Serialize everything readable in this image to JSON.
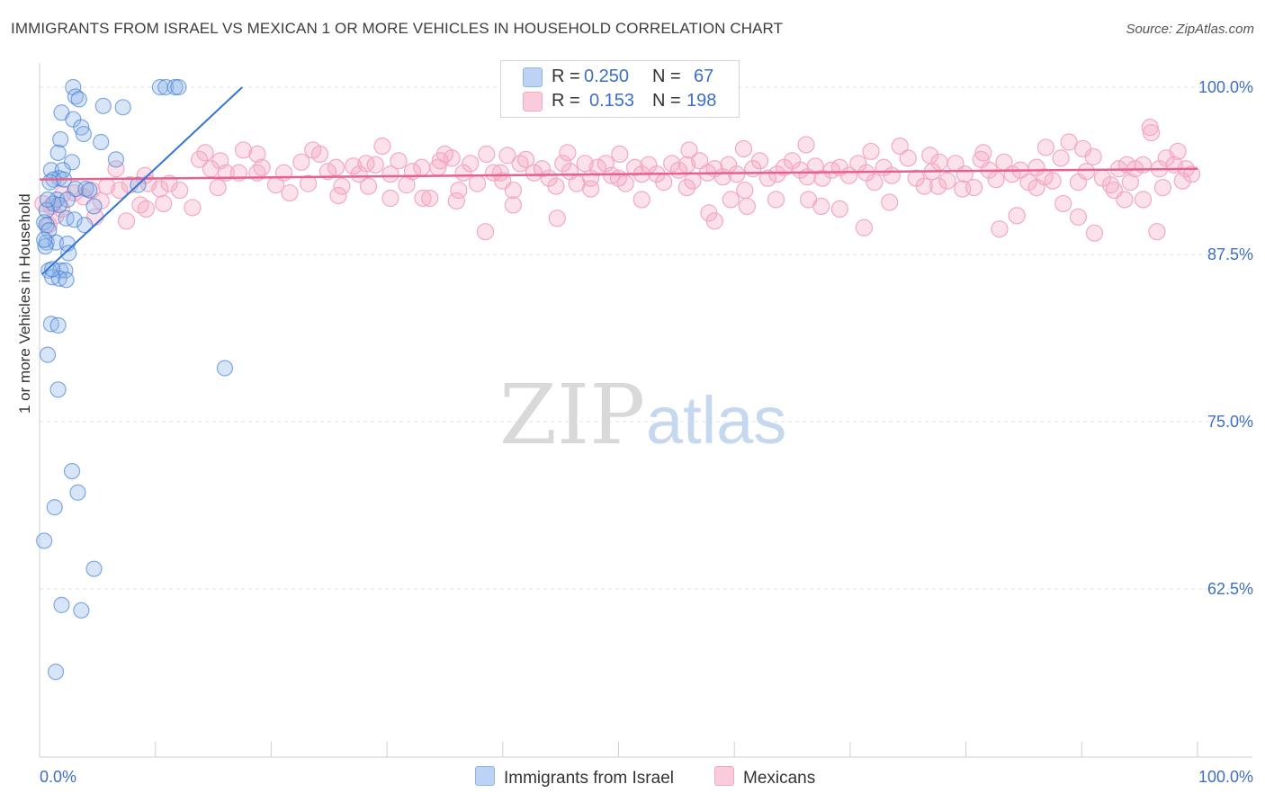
{
  "title": "IMMIGRANTS FROM ISRAEL VS MEXICAN 1 OR MORE VEHICLES IN HOUSEHOLD CORRELATION CHART",
  "source": "Source: ZipAtlas.com",
  "watermark": {
    "zip": "ZIP",
    "atlas": "atlas"
  },
  "legend": {
    "r_label": "R =",
    "n_label": "N =",
    "series1": {
      "r": "0.250",
      "n": "67"
    },
    "series2": {
      "r": "0.153",
      "n": "198"
    }
  },
  "chart_data": {
    "type": "scatter",
    "title": "IMMIGRANTS FROM ISRAEL VS MEXICAN 1 OR MORE VEHICLES IN HOUSEHOLD CORRELATION CHART",
    "xlabel": "",
    "ylabel": "1 or more Vehicles in Household",
    "xlim": [
      0,
      100
    ],
    "ylim": [
      50,
      102
    ],
    "x_tick_labels": [
      "0.0%",
      "100.0%"
    ],
    "y_ticks": [
      62.5,
      75.0,
      87.5,
      100.0
    ],
    "y_tick_labels": [
      "62.5%",
      "75.0%",
      "87.5%",
      "100.0%"
    ],
    "grid": true,
    "legend_position": "top-center",
    "series": [
      {
        "name": "Immigrants from Israel",
        "color": "#8fb4e8",
        "line_color": "#3374d4",
        "r": 0.25,
        "n": 67,
        "trend": {
          "x": [
            0.2,
            17.5
          ],
          "y": [
            86.0,
            100.0
          ]
        },
        "points": [
          [
            2.9,
            100
          ],
          [
            3.1,
            99.3
          ],
          [
            3.4,
            99.1
          ],
          [
            10.4,
            100
          ],
          [
            10.9,
            100
          ],
          [
            11.7,
            100
          ],
          [
            12.0,
            100
          ],
          [
            5.5,
            98.6
          ],
          [
            7.2,
            98.5
          ],
          [
            1.9,
            98.1
          ],
          [
            2.9,
            97.6
          ],
          [
            3.6,
            97.0
          ],
          [
            3.8,
            96.5
          ],
          [
            1.8,
            96.1
          ],
          [
            5.3,
            95.9
          ],
          [
            1.6,
            95.1
          ],
          [
            6.6,
            94.6
          ],
          [
            2.8,
            94.4
          ],
          [
            1.0,
            93.8
          ],
          [
            2.0,
            93.8
          ],
          [
            1.7,
            93.2
          ],
          [
            1.2,
            93.1
          ],
          [
            2.1,
            93.1
          ],
          [
            0.9,
            92.9
          ],
          [
            3.1,
            92.4
          ],
          [
            4.0,
            92.4
          ],
          [
            4.3,
            92.3
          ],
          [
            1.5,
            91.6
          ],
          [
            2.4,
            91.6
          ],
          [
            1.2,
            91.3
          ],
          [
            1.7,
            91.2
          ],
          [
            4.7,
            91.1
          ],
          [
            0.6,
            90.8
          ],
          [
            2.3,
            90.2
          ],
          [
            3.0,
            90.1
          ],
          [
            0.4,
            89.9
          ],
          [
            0.6,
            89.7
          ],
          [
            3.9,
            89.7
          ],
          [
            0.8,
            89.3
          ],
          [
            0.6,
            88.4
          ],
          [
            1.4,
            88.4
          ],
          [
            2.4,
            88.3
          ],
          [
            0.5,
            88.1
          ],
          [
            2.5,
            87.6
          ],
          [
            0.8,
            86.3
          ],
          [
            1.8,
            86.3
          ],
          [
            2.2,
            86.3
          ],
          [
            1.1,
            85.8
          ],
          [
            1.7,
            85.7
          ],
          [
            2.3,
            85.6
          ],
          [
            8.5,
            92.7
          ],
          [
            1.0,
            82.3
          ],
          [
            1.6,
            82.2
          ],
          [
            0.7,
            80.0
          ],
          [
            1.6,
            77.4
          ],
          [
            16.0,
            79.0
          ],
          [
            2.8,
            71.3
          ],
          [
            3.3,
            69.7
          ],
          [
            1.3,
            68.6
          ],
          [
            0.4,
            66.1
          ],
          [
            4.7,
            64.0
          ],
          [
            1.9,
            61.3
          ],
          [
            3.6,
            60.9
          ],
          [
            1.4,
            56.3
          ],
          [
            0.7,
            91.6
          ],
          [
            0.4,
            88.6
          ],
          [
            1.1,
            86.4
          ]
        ]
      },
      {
        "name": "Mexicans",
        "color": "#f4a8c4",
        "line_color": "#e8608c",
        "r": 0.153,
        "n": 198,
        "trend": {
          "x": [
            0,
            100
          ],
          "y": [
            93.1,
            93.9
          ]
        },
        "points": [
          [
            0.3,
            91.3
          ],
          [
            1.4,
            90.4
          ],
          [
            0.8,
            89.7
          ],
          [
            1.0,
            91.1
          ],
          [
            2.0,
            92.0
          ],
          [
            3.0,
            92.1
          ],
          [
            4.5,
            92.3
          ],
          [
            5.8,
            92.6
          ],
          [
            7.8,
            92.7
          ],
          [
            9.4,
            92.8
          ],
          [
            11.2,
            92.8
          ],
          [
            3.8,
            91.8
          ],
          [
            5.3,
            91.5
          ],
          [
            6.9,
            92.3
          ],
          [
            8.7,
            91.2
          ],
          [
            10.4,
            92.4
          ],
          [
            12.1,
            92.3
          ],
          [
            4.8,
            90.3
          ],
          [
            7.5,
            90.0
          ],
          [
            9.2,
            90.9
          ],
          [
            10.7,
            91.3
          ],
          [
            13.2,
            91.0
          ],
          [
            14.3,
            95.1
          ],
          [
            14.8,
            93.9
          ],
          [
            15.6,
            94.5
          ],
          [
            16.1,
            93.6
          ],
          [
            17.2,
            93.6
          ],
          [
            17.6,
            95.3
          ],
          [
            18.8,
            93.6
          ],
          [
            19.2,
            94.0
          ],
          [
            20.4,
            92.7
          ],
          [
            21.1,
            93.6
          ],
          [
            21.6,
            92.1
          ],
          [
            22.6,
            94.4
          ],
          [
            23.2,
            92.8
          ],
          [
            24.2,
            95.0
          ],
          [
            24.9,
            93.7
          ],
          [
            25.6,
            94.0
          ],
          [
            26.1,
            92.6
          ],
          [
            27.1,
            94.1
          ],
          [
            27.6,
            93.5
          ],
          [
            28.4,
            92.6
          ],
          [
            29.0,
            94.2
          ],
          [
            29.6,
            95.6
          ],
          [
            30.3,
            93.5
          ],
          [
            31.0,
            94.5
          ],
          [
            31.7,
            92.7
          ],
          [
            32.2,
            93.7
          ],
          [
            33.0,
            94.0
          ],
          [
            33.7,
            91.7
          ],
          [
            34.4,
            94.0
          ],
          [
            35.0,
            95.0
          ],
          [
            35.6,
            94.7
          ],
          [
            36.2,
            92.3
          ],
          [
            36.6,
            93.6
          ],
          [
            37.2,
            94.3
          ],
          [
            37.8,
            92.8
          ],
          [
            38.6,
            95.0
          ],
          [
            39.2,
            93.6
          ],
          [
            39.8,
            93.6
          ],
          [
            40.4,
            94.9
          ],
          [
            40.9,
            92.3
          ],
          [
            41.5,
            94.3
          ],
          [
            42.0,
            94.6
          ],
          [
            42.7,
            93.6
          ],
          [
            43.4,
            93.9
          ],
          [
            44.0,
            93.2
          ],
          [
            44.6,
            92.6
          ],
          [
            45.2,
            94.3
          ],
          [
            45.8,
            93.7
          ],
          [
            46.4,
            92.8
          ],
          [
            47.1,
            94.3
          ],
          [
            47.6,
            93.2
          ],
          [
            48.2,
            94.0
          ],
          [
            48.9,
            94.3
          ],
          [
            49.4,
            93.4
          ],
          [
            50.0,
            93.2
          ],
          [
            50.6,
            92.8
          ],
          [
            51.4,
            94.0
          ],
          [
            52.0,
            93.5
          ],
          [
            52.6,
            94.2
          ],
          [
            53.3,
            93.5
          ],
          [
            53.9,
            92.9
          ],
          [
            54.6,
            94.3
          ],
          [
            55.2,
            93.8
          ],
          [
            55.9,
            94.2
          ],
          [
            56.4,
            93.0
          ],
          [
            57.0,
            94.5
          ],
          [
            57.7,
            93.6
          ],
          [
            58.3,
            93.9
          ],
          [
            59.0,
            93.3
          ],
          [
            59.5,
            94.2
          ],
          [
            60.2,
            93.5
          ],
          [
            60.9,
            92.3
          ],
          [
            61.6,
            93.9
          ],
          [
            62.2,
            94.5
          ],
          [
            62.9,
            93.2
          ],
          [
            63.7,
            93.5
          ],
          [
            64.3,
            94.0
          ],
          [
            65.0,
            94.5
          ],
          [
            65.7,
            93.8
          ],
          [
            66.3,
            93.3
          ],
          [
            67.0,
            94.1
          ],
          [
            67.6,
            93.2
          ],
          [
            68.4,
            93.8
          ],
          [
            69.1,
            94.0
          ],
          [
            69.9,
            93.4
          ],
          [
            70.7,
            94.3
          ],
          [
            71.4,
            93.6
          ],
          [
            72.1,
            92.9
          ],
          [
            72.9,
            94.0
          ],
          [
            73.6,
            93.4
          ],
          [
            74.3,
            95.6
          ],
          [
            75.0,
            94.7
          ],
          [
            75.7,
            93.2
          ],
          [
            76.4,
            92.6
          ],
          [
            77.1,
            93.7
          ],
          [
            77.7,
            94.4
          ],
          [
            78.4,
            93.0
          ],
          [
            79.1,
            94.3
          ],
          [
            79.9,
            93.5
          ],
          [
            80.7,
            92.5
          ],
          [
            81.3,
            94.6
          ],
          [
            82.0,
            93.8
          ],
          [
            82.6,
            93.1
          ],
          [
            83.3,
            94.4
          ],
          [
            84.0,
            93.5
          ],
          [
            84.7,
            93.8
          ],
          [
            85.4,
            92.9
          ],
          [
            86.1,
            94.0
          ],
          [
            86.8,
            93.3
          ],
          [
            87.5,
            93.0
          ],
          [
            88.2,
            94.7
          ],
          [
            88.9,
            95.9
          ],
          [
            89.7,
            92.9
          ],
          [
            90.4,
            93.7
          ],
          [
            91.0,
            94.8
          ],
          [
            91.8,
            93.2
          ],
          [
            92.5,
            92.7
          ],
          [
            93.2,
            93.9
          ],
          [
            93.9,
            94.2
          ],
          [
            94.6,
            93.9
          ],
          [
            95.3,
            94.2
          ],
          [
            96.0,
            96.6
          ],
          [
            96.7,
            93.9
          ],
          [
            97.3,
            94.7
          ],
          [
            98.0,
            94.2
          ],
          [
            98.7,
            93.0
          ],
          [
            99.5,
            93.5
          ],
          [
            58.3,
            90.0
          ],
          [
            61.1,
            91.1
          ],
          [
            71.2,
            89.5
          ],
          [
            82.9,
            89.4
          ],
          [
            89.7,
            90.3
          ],
          [
            91.1,
            89.1
          ],
          [
            96.5,
            89.2
          ],
          [
            38.5,
            89.2
          ],
          [
            44.7,
            90.2
          ],
          [
            47.6,
            92.4
          ],
          [
            52.0,
            91.6
          ],
          [
            67.5,
            91.1
          ],
          [
            69.1,
            90.9
          ],
          [
            88.4,
            91.3
          ],
          [
            93.7,
            91.6
          ],
          [
            57.8,
            90.6
          ],
          [
            30.3,
            91.7
          ],
          [
            33.1,
            91.7
          ],
          [
            36.0,
            91.5
          ],
          [
            40.9,
            91.2
          ],
          [
            55.9,
            92.5
          ],
          [
            59.7,
            91.6
          ],
          [
            63.6,
            91.6
          ],
          [
            66.4,
            91.6
          ],
          [
            73.4,
            91.4
          ],
          [
            77.6,
            92.6
          ],
          [
            79.7,
            92.4
          ],
          [
            86.1,
            92.5
          ],
          [
            95.3,
            91.6
          ],
          [
            84.4,
            90.4
          ],
          [
            94.2,
            92.9
          ],
          [
            92.8,
            92.3
          ],
          [
            95.9,
            97.0
          ],
          [
            98.3,
            95.2
          ],
          [
            99.0,
            93.9
          ],
          [
            97.0,
            92.5
          ],
          [
            90.1,
            95.4
          ],
          [
            86.9,
            95.5
          ],
          [
            81.5,
            95.1
          ],
          [
            76.9,
            94.9
          ],
          [
            71.8,
            95.2
          ],
          [
            66.2,
            95.7
          ],
          [
            60.8,
            95.4
          ],
          [
            56.1,
            95.3
          ],
          [
            50.1,
            95.0
          ],
          [
            45.6,
            95.1
          ],
          [
            40.0,
            93.0
          ],
          [
            34.6,
            94.5
          ],
          [
            28.2,
            94.3
          ],
          [
            23.6,
            95.3
          ],
          [
            18.8,
            95.0
          ],
          [
            13.8,
            94.6
          ],
          [
            9.1,
            93.4
          ],
          [
            6.6,
            93.9
          ],
          [
            1.9,
            90.9
          ],
          [
            15.4,
            92.5
          ],
          [
            25.8,
            91.9
          ]
        ]
      }
    ]
  }
}
